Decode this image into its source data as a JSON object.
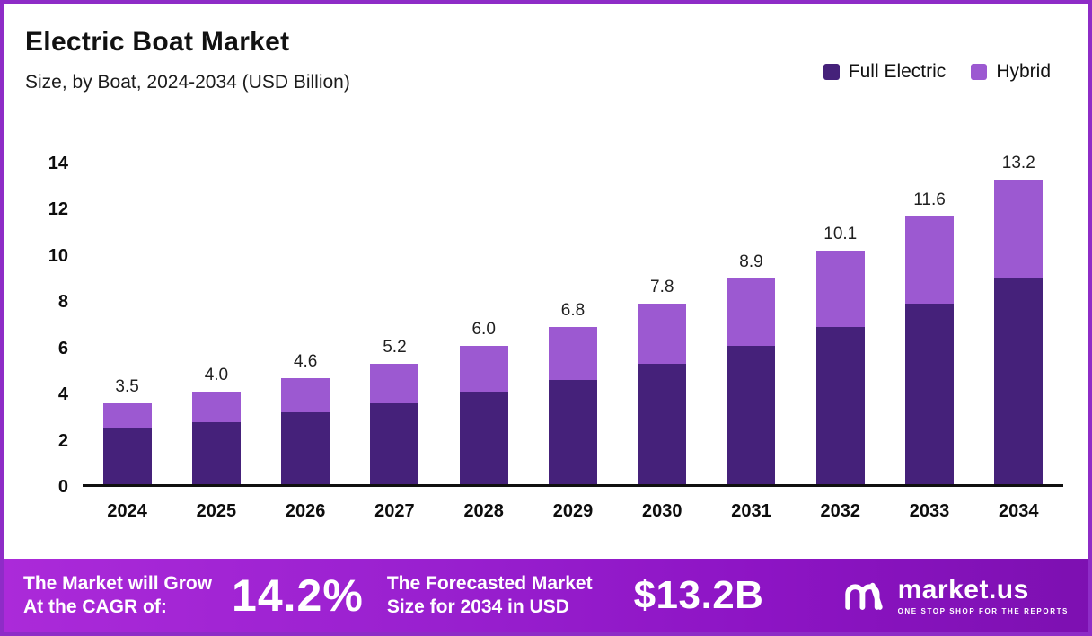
{
  "header": {
    "title": "Electric Boat Market",
    "subtitle": "Size, by Boat, 2024-2034 (USD Billion)"
  },
  "legend": [
    {
      "label": "Full Electric",
      "color": "#45217a"
    },
    {
      "label": "Hybrid",
      "color": "#9c59d1"
    }
  ],
  "chart_data": {
    "type": "bar",
    "stacked": true,
    "title": "Electric Boat Market",
    "subtitle": "Size, by Boat, 2024-2034 (USD Billion)",
    "xlabel": "",
    "ylabel": "",
    "ylim": [
      0,
      14
    ],
    "yticks": [
      0,
      2,
      4,
      6,
      8,
      10,
      12,
      14
    ],
    "grid": false,
    "legend_position": "top-right",
    "categories": [
      "2024",
      "2025",
      "2026",
      "2027",
      "2028",
      "2029",
      "2030",
      "2031",
      "2032",
      "2033",
      "2034"
    ],
    "series": [
      {
        "name": "Full Electric",
        "color": "#45217a",
        "values": [
          2.4,
          2.7,
          3.1,
          3.5,
          4.0,
          4.5,
          5.2,
          6.0,
          6.8,
          7.8,
          8.9
        ]
      },
      {
        "name": "Hybrid",
        "color": "#9c59d1",
        "values": [
          1.1,
          1.3,
          1.5,
          1.7,
          2.0,
          2.3,
          2.6,
          2.9,
          3.3,
          3.8,
          4.3
        ]
      }
    ],
    "totals": [
      3.5,
      4.0,
      4.6,
      5.2,
      6.0,
      6.8,
      7.8,
      8.9,
      10.1,
      11.6,
      13.2
    ],
    "total_labels": [
      "3.5",
      "4.0",
      "4.6",
      "5.2",
      "6.0",
      "6.8",
      "7.8",
      "8.9",
      "10.1",
      "11.6",
      "13.2"
    ]
  },
  "footer": {
    "cagr_line1": "The Market will Grow",
    "cagr_line2": "At the CAGR of:",
    "cagr_value": "14.2%",
    "forecast_line1": "The Forecasted Market",
    "forecast_line2": "Size for 2034 in USD",
    "forecast_value": "$13.2B",
    "gradient": [
      "#ab2ad9",
      "#7d10b1"
    ],
    "brand_name": "market.us",
    "brand_tagline": "ONE STOP SHOP FOR THE REPORTS"
  },
  "colors": {
    "frame_border": "#8e2cc7",
    "full_electric": "#45217a",
    "hybrid": "#9c59d1",
    "axis": "#101010"
  }
}
